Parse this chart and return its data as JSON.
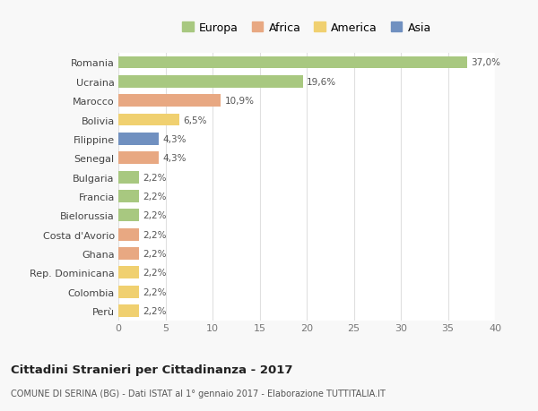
{
  "countries": [
    "Romania",
    "Ucraina",
    "Marocco",
    "Bolivia",
    "Filippine",
    "Senegal",
    "Bulgaria",
    "Francia",
    "Bielorussia",
    "Costa d'Avorio",
    "Ghana",
    "Rep. Dominicana",
    "Colombia",
    "Perù"
  ],
  "values": [
    37.0,
    19.6,
    10.9,
    6.5,
    4.3,
    4.3,
    2.2,
    2.2,
    2.2,
    2.2,
    2.2,
    2.2,
    2.2,
    2.2
  ],
  "labels": [
    "37,0%",
    "19,6%",
    "10,9%",
    "6,5%",
    "4,3%",
    "4,3%",
    "2,2%",
    "2,2%",
    "2,2%",
    "2,2%",
    "2,2%",
    "2,2%",
    "2,2%",
    "2,2%"
  ],
  "colors": [
    "#a8c880",
    "#a8c880",
    "#e8a882",
    "#f0d070",
    "#7090c0",
    "#e8a882",
    "#a8c880",
    "#a8c880",
    "#a8c880",
    "#e8a882",
    "#e8a882",
    "#f0d070",
    "#f0d070",
    "#f0d070"
  ],
  "legend_labels": [
    "Europa",
    "Africa",
    "America",
    "Asia"
  ],
  "legend_colors": [
    "#a8c880",
    "#e8a882",
    "#f0d070",
    "#7090c0"
  ],
  "title": "Cittadini Stranieri per Cittadinanza - 2017",
  "subtitle": "COMUNE DI SERINA (BG) - Dati ISTAT al 1° gennaio 2017 - Elaborazione TUTTITALIA.IT",
  "xlim": [
    0,
    40
  ],
  "xticks": [
    0,
    5,
    10,
    15,
    20,
    25,
    30,
    35,
    40
  ],
  "background_color": "#f8f8f8",
  "bar_background": "#ffffff",
  "grid_color": "#e0e0e0"
}
